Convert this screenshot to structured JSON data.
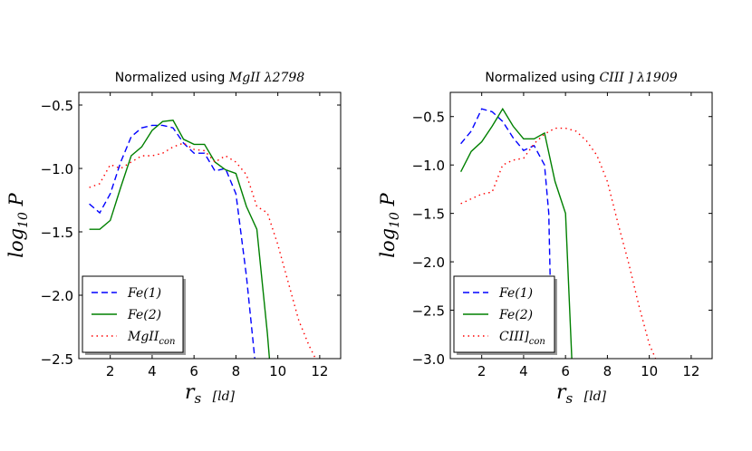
{
  "chart_data": [
    {
      "type": "line",
      "title_prefix": "Normalized using ",
      "title_ion": "MgII",
      "title_lambda": "λ2798",
      "xlabel_main": "r",
      "xlabel_sub": "s",
      "xlabel_unit": "[ld]",
      "ylabel_main": "log",
      "ylabel_sub": "10",
      "ylabel_var": "P",
      "xlim": [
        0.5,
        13
      ],
      "ylim": [
        -2.5,
        -0.4
      ],
      "xticks": [
        2,
        4,
        6,
        8,
        10,
        12
      ],
      "yticks": [
        -2.5,
        -2.0,
        -1.5,
        -1.0,
        -0.5
      ],
      "xtick_labels": [
        "2",
        "4",
        "6",
        "8",
        "10",
        "12"
      ],
      "ytick_labels": [
        "−2.5",
        "−2.0",
        "−1.5",
        "−1.0",
        "−0.5"
      ],
      "legend_position": "bottom-left",
      "series": [
        {
          "name": "Fe(1)",
          "name_base": "Fe(1)",
          "name_sub": "",
          "color": "#0000ff",
          "dash": "dashed",
          "x": [
            1.0,
            1.5,
            2.0,
            2.5,
            3.0,
            3.5,
            4.0,
            4.5,
            5.0,
            5.5,
            6.0,
            6.5,
            7.0,
            7.5,
            8.0,
            8.5,
            8.9
          ],
          "y": [
            -1.28,
            -1.35,
            -1.2,
            -0.95,
            -0.75,
            -0.68,
            -0.66,
            -0.66,
            -0.68,
            -0.8,
            -0.88,
            -0.88,
            -1.02,
            -1.0,
            -1.2,
            -1.85,
            -2.5
          ]
        },
        {
          "name": "Fe(2)",
          "name_base": "Fe(2)",
          "name_sub": "",
          "color": "#008000",
          "dash": "solid",
          "x": [
            1.0,
            1.5,
            2.0,
            2.5,
            3.0,
            3.5,
            4.0,
            4.5,
            5.0,
            5.5,
            6.0,
            6.5,
            7.0,
            7.5,
            8.0,
            8.5,
            9.0,
            9.5,
            9.6
          ],
          "y": [
            -1.48,
            -1.48,
            -1.41,
            -1.15,
            -0.9,
            -0.83,
            -0.7,
            -0.63,
            -0.62,
            -0.77,
            -0.81,
            -0.81,
            -0.95,
            -1.01,
            -1.04,
            -1.3,
            -1.48,
            -2.3,
            -2.5
          ]
        },
        {
          "name": "MgII_con",
          "name_base": "MgII",
          "name_sub": "con",
          "color": "#ff0000",
          "dash": "dotted",
          "x": [
            1.0,
            1.5,
            2.0,
            2.5,
            3.0,
            3.5,
            4.0,
            4.5,
            5.0,
            5.5,
            6.0,
            6.5,
            7.0,
            7.5,
            8.0,
            8.5,
            9.0,
            9.5,
            10.0,
            10.5,
            11.0,
            11.5,
            11.8
          ],
          "y": [
            -1.15,
            -1.12,
            -0.97,
            -1.0,
            -0.95,
            -0.9,
            -0.9,
            -0.88,
            -0.83,
            -0.8,
            -0.85,
            -0.86,
            -0.95,
            -0.9,
            -0.95,
            -1.05,
            -1.3,
            -1.35,
            -1.6,
            -1.9,
            -2.2,
            -2.4,
            -2.5
          ]
        }
      ]
    },
    {
      "type": "line",
      "title_prefix": "Normalized using ",
      "title_ion": "CIII",
      "title_lambda": "] λ1909",
      "xlabel_main": "r",
      "xlabel_sub": "s",
      "xlabel_unit": "[ld]",
      "ylabel_main": "log",
      "ylabel_sub": "10",
      "ylabel_var": "P",
      "xlim": [
        0.5,
        13
      ],
      "ylim": [
        -3.0,
        -0.25
      ],
      "xticks": [
        2,
        4,
        6,
        8,
        10,
        12
      ],
      "yticks": [
        -3.0,
        -2.5,
        -2.0,
        -1.5,
        -1.0,
        -0.5
      ],
      "xtick_labels": [
        "2",
        "4",
        "6",
        "8",
        "10",
        "12"
      ],
      "ytick_labels": [
        "−3.0",
        "−2.5",
        "−2.0",
        "−1.5",
        "−1.0",
        "−0.5"
      ],
      "legend_position": "bottom-left",
      "series": [
        {
          "name": "Fe(1)",
          "name_base": "Fe(1)",
          "name_sub": "",
          "color": "#0000ff",
          "dash": "dashed",
          "x": [
            1.0,
            1.5,
            2.0,
            2.5,
            3.0,
            3.5,
            4.0,
            4.5,
            5.0,
            5.2,
            5.35
          ],
          "y": [
            -0.78,
            -0.65,
            -0.42,
            -0.45,
            -0.55,
            -0.72,
            -0.85,
            -0.8,
            -1.0,
            -1.5,
            -3.0
          ]
        },
        {
          "name": "Fe(2)",
          "name_base": "Fe(2)",
          "name_sub": "",
          "color": "#008000",
          "dash": "solid",
          "x": [
            1.0,
            1.5,
            2.0,
            2.5,
            3.0,
            3.5,
            4.0,
            4.5,
            5.0,
            5.5,
            6.0,
            6.3
          ],
          "y": [
            -1.07,
            -0.86,
            -0.76,
            -0.6,
            -0.42,
            -0.6,
            -0.73,
            -0.73,
            -0.67,
            -1.17,
            -1.5,
            -3.0
          ]
        },
        {
          "name": "CIII]_con",
          "name_base": "CIII]",
          "name_sub": "con",
          "color": "#ff0000",
          "dash": "dotted",
          "x": [
            1.0,
            1.5,
            2.0,
            2.5,
            3.0,
            3.5,
            4.0,
            4.5,
            5.0,
            5.5,
            6.0,
            6.5,
            7.0,
            7.5,
            8.0,
            8.5,
            9.0,
            9.5,
            10.0,
            10.3
          ],
          "y": [
            -1.4,
            -1.35,
            -1.3,
            -1.28,
            -1.0,
            -0.95,
            -0.93,
            -0.78,
            -0.68,
            -0.62,
            -0.62,
            -0.65,
            -0.75,
            -0.9,
            -1.17,
            -1.6,
            -2.0,
            -2.45,
            -2.85,
            -3.0
          ]
        }
      ]
    }
  ]
}
